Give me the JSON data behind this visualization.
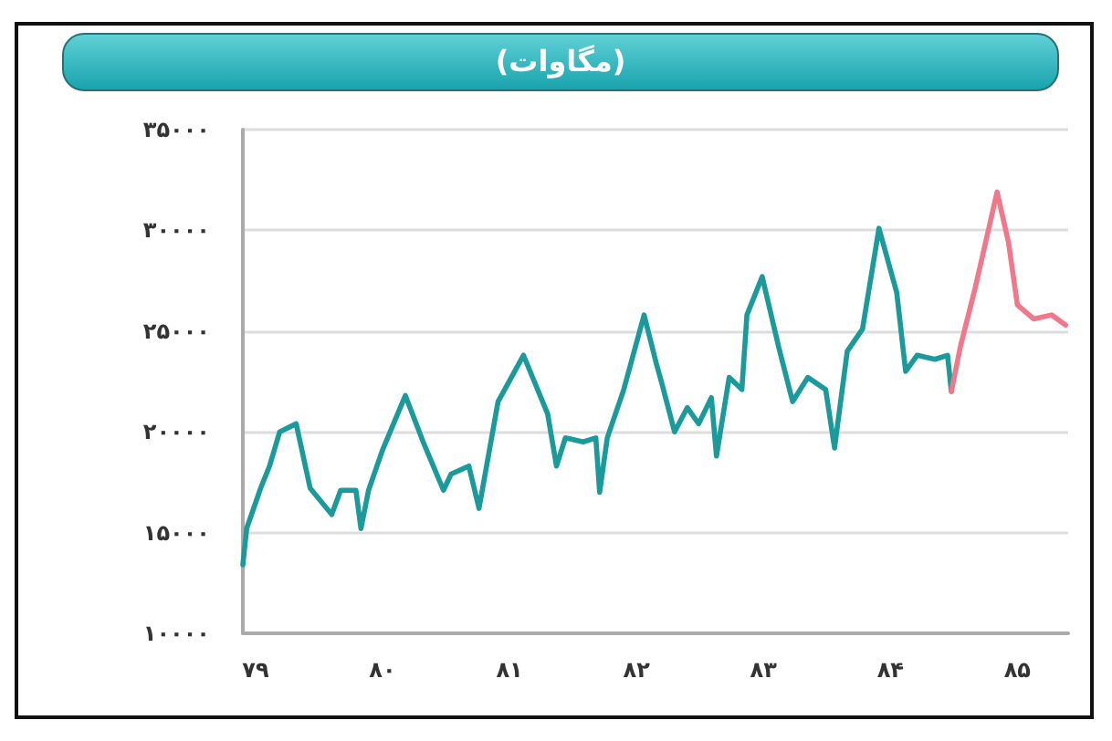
{
  "chart_data": {
    "type": "line",
    "title": "(مگاوات)",
    "marker": "none",
    "grid": "y",
    "xlim": [
      78.9,
      85.4
    ],
    "xticks": [
      {
        "value": 79,
        "label": "۷۹"
      },
      {
        "value": 80,
        "label": "۸۰"
      },
      {
        "value": 81,
        "label": "۸۱"
      },
      {
        "value": 82,
        "label": "۸۲"
      },
      {
        "value": 83,
        "label": "۸۳"
      },
      {
        "value": 84,
        "label": "۸۴"
      },
      {
        "value": 85,
        "label": "۸۵"
      }
    ],
    "ylim": [
      10000,
      35000
    ],
    "yticks": [
      {
        "value": 10000,
        "label": "۱۰۰۰۰"
      },
      {
        "value": 15000,
        "label": "۱۵۰۰۰"
      },
      {
        "value": 20000,
        "label": "۲۰۰۰۰"
      },
      {
        "value": 25000,
        "label": "۲۵۰۰۰"
      },
      {
        "value": 30000,
        "label": "۳۰۰۰۰"
      },
      {
        "value": 35000,
        "label": "۳۵۰۰۰"
      }
    ],
    "series": [
      {
        "color": "#1a9a9a",
        "x": [
          78.9,
          78.93,
          79.04,
          79.11,
          79.19,
          79.32,
          79.43,
          79.6,
          79.67,
          79.79,
          79.83,
          79.89,
          80.0,
          80.18,
          80.32,
          80.48,
          80.54,
          80.68,
          80.76,
          80.91,
          81.11,
          81.3,
          81.37,
          81.44,
          81.58,
          81.68,
          81.71,
          81.77,
          81.9,
          82.06,
          82.16,
          82.2,
          82.3,
          82.4,
          82.49,
          82.59,
          82.63,
          82.73,
          82.83,
          82.87,
          82.99,
          83.12,
          83.23,
          83.35,
          83.49,
          83.56,
          83.66,
          83.78,
          83.91,
          84.05,
          84.12,
          84.21,
          84.35,
          84.45,
          84.48
        ],
        "values": [
          13400,
          15200,
          17200,
          18300,
          20000,
          20400,
          17200,
          15900,
          17100,
          17100,
          15200,
          17100,
          19100,
          21800,
          19500,
          17100,
          17900,
          18300,
          16200,
          21500,
          23800,
          20900,
          18300,
          19700,
          19500,
          19700,
          17000,
          19700,
          22100,
          25800,
          23300,
          22400,
          20000,
          21200,
          20400,
          21700,
          18800,
          22700,
          22100,
          25800,
          27700,
          24200,
          21500,
          22700,
          22100,
          19200,
          24000,
          25100,
          30100,
          26900,
          23000,
          23800,
          23600,
          23800,
          22000
        ]
      },
      {
        "color": "#f0788a",
        "x": [
          84.48,
          84.55,
          84.67,
          84.84,
          84.93,
          85.0,
          85.13,
          85.27,
          85.38
        ],
        "values": [
          22000,
          24200,
          27200,
          31900,
          29400,
          26300,
          25600,
          25800,
          25300
        ]
      }
    ]
  }
}
